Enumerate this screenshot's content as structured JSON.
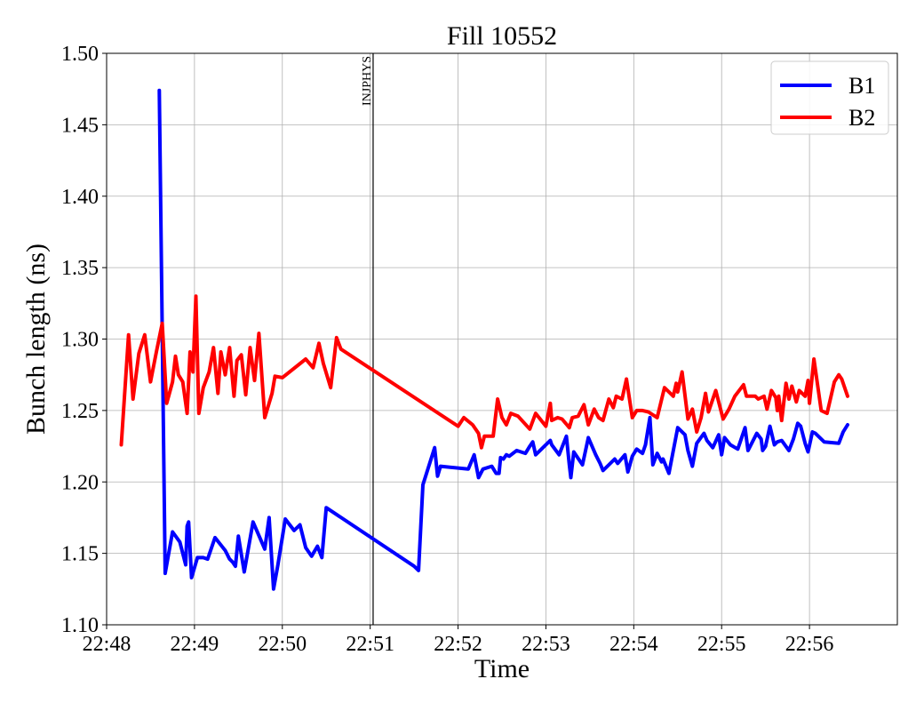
{
  "chart_data": {
    "type": "line",
    "title": "Fill 10552",
    "xlabel": "Time",
    "ylabel": "Bunch length (ns)",
    "x_unit": "HH:MM time of day",
    "xlim": [
      "22:48:00",
      "22:57:00"
    ],
    "ylim": [
      1.1,
      1.5
    ],
    "xticks": [
      "22:48",
      "22:49",
      "22:50",
      "22:51",
      "22:52",
      "22:53",
      "22:54",
      "22:55",
      "22:56"
    ],
    "yticks": [
      "1.10",
      "1.15",
      "1.20",
      "1.25",
      "1.30",
      "1.35",
      "1.40",
      "1.45",
      "1.50"
    ],
    "grid": true,
    "legend_position": "top-right",
    "annotations": [
      {
        "text": "INJPHYS",
        "x": "22:51:02",
        "kind": "vertical-line"
      }
    ],
    "series": [
      {
        "name": "B1",
        "color": "#0000ff",
        "x": [
          "22:48:36",
          "22:48:40",
          "22:48:45",
          "22:48:50",
          "22:48:54",
          "22:48:55",
          "22:48:56",
          "22:48:58",
          "22:49:02",
          "22:49:06",
          "22:49:09",
          "22:49:14",
          "22:49:21",
          "22:49:24",
          "22:49:26",
          "22:49:28",
          "22:49:30",
          "22:49:34",
          "22:49:40",
          "22:49:48",
          "22:49:51",
          "22:49:54",
          "22:49:57",
          "22:50:02",
          "22:50:08",
          "22:50:12",
          "22:50:16",
          "22:50:20",
          "22:50:24",
          "22:50:27",
          "22:50:30",
          "22:51:30",
          "22:51:33",
          "22:51:36",
          "22:51:44",
          "22:51:46",
          "22:51:48",
          "22:52:07",
          "22:52:11",
          "22:52:14",
          "22:52:17",
          "22:52:23",
          "22:52:26",
          "22:52:28",
          "22:52:29",
          "22:52:31",
          "22:52:33",
          "22:52:35",
          "22:52:40",
          "22:52:46",
          "22:52:49",
          "22:52:51",
          "22:52:53",
          "22:53:03",
          "22:53:04",
          "22:53:09",
          "22:53:14",
          "22:53:16",
          "22:53:17",
          "22:53:19",
          "22:53:25",
          "22:53:29",
          "22:53:34",
          "22:53:37",
          "22:53:39",
          "22:53:43",
          "22:53:47",
          "22:53:49",
          "22:53:54",
          "22:53:56",
          "22:53:59",
          "22:54:02",
          "22:54:06",
          "22:54:08",
          "22:54:11",
          "22:54:13",
          "22:54:16",
          "22:54:19",
          "22:54:20",
          "22:54:24",
          "22:54:30",
          "22:54:35",
          "22:54:37",
          "22:54:40",
          "22:54:43",
          "22:54:48",
          "22:54:50",
          "22:54:54",
          "22:54:58",
          "22:55:00",
          "22:55:02",
          "22:55:06",
          "22:55:11",
          "22:55:16",
          "22:55:18",
          "22:55:24",
          "22:55:27",
          "22:55:28",
          "22:55:30",
          "22:55:33",
          "22:55:36",
          "22:55:38",
          "22:55:41",
          "22:55:46",
          "22:55:49",
          "22:55:52",
          "22:55:54",
          "22:55:57",
          "22:55:59",
          "22:56:02",
          "22:56:04",
          "22:56:10",
          "22:56:20",
          "22:56:23",
          "22:56:26"
        ],
        "values": [
          1.474,
          1.136,
          1.165,
          1.158,
          1.142,
          1.169,
          1.172,
          1.133,
          1.147,
          1.147,
          1.146,
          1.161,
          1.152,
          1.146,
          1.144,
          1.141,
          1.162,
          1.137,
          1.172,
          1.153,
          1.175,
          1.125,
          1.142,
          1.174,
          1.166,
          1.17,
          1.154,
          1.148,
          1.155,
          1.147,
          1.182,
          1.141,
          1.138,
          1.198,
          1.224,
          1.204,
          1.211,
          1.209,
          1.219,
          1.203,
          1.209,
          1.211,
          1.206,
          1.206,
          1.217,
          1.216,
          1.219,
          1.218,
          1.222,
          1.22,
          1.225,
          1.228,
          1.219,
          1.229,
          1.226,
          1.219,
          1.232,
          1.212,
          1.203,
          1.221,
          1.212,
          1.231,
          1.219,
          1.213,
          1.208,
          1.212,
          1.216,
          1.213,
          1.219,
          1.207,
          1.218,
          1.223,
          1.22,
          1.226,
          1.245,
          1.212,
          1.22,
          1.214,
          1.216,
          1.206,
          1.238,
          1.233,
          1.222,
          1.211,
          1.227,
          1.234,
          1.229,
          1.224,
          1.233,
          1.219,
          1.231,
          1.226,
          1.223,
          1.238,
          1.222,
          1.234,
          1.23,
          1.222,
          1.225,
          1.239,
          1.226,
          1.228,
          1.229,
          1.222,
          1.23,
          1.241,
          1.239,
          1.227,
          1.221,
          1.235,
          1.234,
          1.228,
          1.227,
          1.235,
          1.24
        ]
      },
      {
        "name": "B2",
        "color": "#ff0000",
        "x": [
          "22:48:10",
          "22:48:15",
          "22:48:18",
          "22:48:22",
          "22:48:26",
          "22:48:30",
          "22:48:34",
          "22:48:38",
          "22:48:41",
          "22:48:45",
          "22:48:47",
          "22:48:49",
          "22:48:52",
          "22:48:55",
          "22:48:57",
          "22:48:59",
          "22:49:01",
          "22:49:03",
          "22:49:06",
          "22:49:10",
          "22:49:13",
          "22:49:16",
          "22:49:18",
          "22:49:21",
          "22:49:24",
          "22:49:27",
          "22:49:29",
          "22:49:32",
          "22:49:35",
          "22:49:38",
          "22:49:41",
          "22:49:44",
          "22:49:48",
          "22:49:53",
          "22:49:55",
          "22:50:00",
          "22:50:16",
          "22:50:21",
          "22:50:25",
          "22:50:28",
          "22:50:33",
          "22:50:37",
          "22:50:40",
          "22:52:00",
          "22:52:04",
          "22:52:10",
          "22:52:14",
          "22:52:16",
          "22:52:18",
          "22:52:24",
          "22:52:27",
          "22:52:30",
          "22:52:33",
          "22:52:36",
          "22:52:41",
          "22:52:49",
          "22:52:53",
          "22:53:00",
          "22:53:03",
          "22:53:04",
          "22:53:08",
          "22:53:11",
          "22:53:16",
          "22:53:18",
          "22:53:22",
          "22:53:26",
          "22:53:29",
          "22:53:33",
          "22:53:36",
          "22:53:39",
          "22:53:43",
          "22:53:46",
          "22:53:48",
          "22:53:52",
          "22:53:55",
          "22:53:59",
          "22:54:02",
          "22:54:06",
          "22:54:10",
          "22:54:16",
          "22:54:21",
          "22:54:25",
          "22:54:27",
          "22:54:29",
          "22:54:30",
          "22:54:33",
          "22:54:37",
          "22:54:40",
          "22:54:43",
          "22:54:46",
          "22:54:49",
          "22:54:51",
          "22:54:56",
          "22:55:01",
          "22:55:05",
          "22:55:09",
          "22:55:15",
          "22:55:17",
          "22:55:23",
          "22:55:25",
          "22:55:29",
          "22:55:31",
          "22:55:34",
          "22:55:37",
          "22:55:38",
          "22:55:39",
          "22:55:41",
          "22:55:44",
          "22:55:46",
          "22:55:48",
          "22:55:51",
          "22:55:53",
          "22:55:57",
          "22:55:59",
          "22:56:00",
          "22:56:03",
          "22:56:08",
          "22:56:12",
          "22:56:17",
          "22:56:20",
          "22:56:22",
          "22:56:26"
        ],
        "values": [
          1.226,
          1.303,
          1.258,
          1.29,
          1.303,
          1.27,
          1.291,
          1.311,
          1.255,
          1.27,
          1.288,
          1.275,
          1.27,
          1.248,
          1.291,
          1.277,
          1.33,
          1.248,
          1.266,
          1.277,
          1.294,
          1.262,
          1.291,
          1.275,
          1.294,
          1.26,
          1.285,
          1.289,
          1.261,
          1.294,
          1.271,
          1.304,
          1.245,
          1.262,
          1.274,
          1.273,
          1.286,
          1.28,
          1.297,
          1.283,
          1.266,
          1.301,
          1.293,
          1.239,
          1.245,
          1.24,
          1.234,
          1.224,
          1.232,
          1.232,
          1.258,
          1.245,
          1.24,
          1.248,
          1.246,
          1.237,
          1.248,
          1.239,
          1.255,
          1.243,
          1.245,
          1.244,
          1.238,
          1.245,
          1.246,
          1.254,
          1.24,
          1.251,
          1.245,
          1.243,
          1.258,
          1.252,
          1.26,
          1.258,
          1.272,
          1.245,
          1.25,
          1.25,
          1.249,
          1.245,
          1.266,
          1.262,
          1.26,
          1.269,
          1.263,
          1.277,
          1.244,
          1.251,
          1.235,
          1.245,
          1.262,
          1.249,
          1.264,
          1.244,
          1.251,
          1.26,
          1.268,
          1.26,
          1.26,
          1.258,
          1.26,
          1.251,
          1.264,
          1.259,
          1.25,
          1.26,
          1.243,
          1.269,
          1.258,
          1.267,
          1.256,
          1.264,
          1.26,
          1.271,
          1.255,
          1.286,
          1.25,
          1.248,
          1.27,
          1.275,
          1.272,
          1.26
        ]
      }
    ]
  }
}
